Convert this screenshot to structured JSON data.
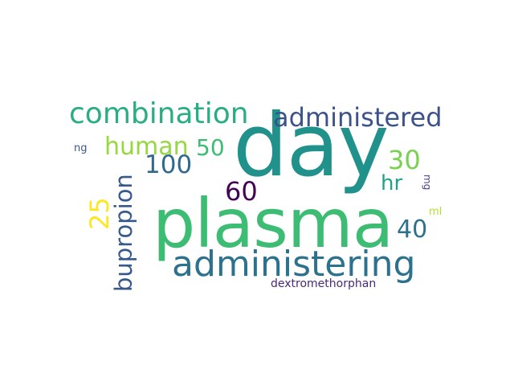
{
  "background_color": "#ffffff",
  "words": {
    "day": {
      "text": "day",
      "color": "#21918c"
    },
    "plasma": {
      "text": "plasma",
      "color": "#3dbc74"
    },
    "administering": {
      "text": "administering",
      "color": "#2c728e"
    },
    "combination": {
      "text": "combination",
      "color": "#29af7f"
    },
    "administered": {
      "text": "administered",
      "color": "#3b528b"
    },
    "bupropion": {
      "text": "bupropion",
      "color": "#38598c"
    },
    "human": {
      "text": "human",
      "color": "#95d840"
    },
    "n100": {
      "text": "100",
      "color": "#31688e"
    },
    "n50": {
      "text": "50",
      "color": "#3dbc74"
    },
    "n60": {
      "text": "60",
      "color": "#440154"
    },
    "n30": {
      "text": "30",
      "color": "#7ad151"
    },
    "hr": {
      "text": "hr",
      "color": "#20a386"
    },
    "n40": {
      "text": "40",
      "color": "#2c728e"
    },
    "n25": {
      "text": "25",
      "color": "#fde725"
    },
    "dextromethorphan": {
      "text": "dextromethorphan",
      "color": "#482878"
    },
    "ng": {
      "text": "ng",
      "color": "#39568c"
    },
    "mg": {
      "text": "mg",
      "color": "#433e85"
    },
    "ml": {
      "text": "ml",
      "color": "#b5de2b"
    }
  }
}
